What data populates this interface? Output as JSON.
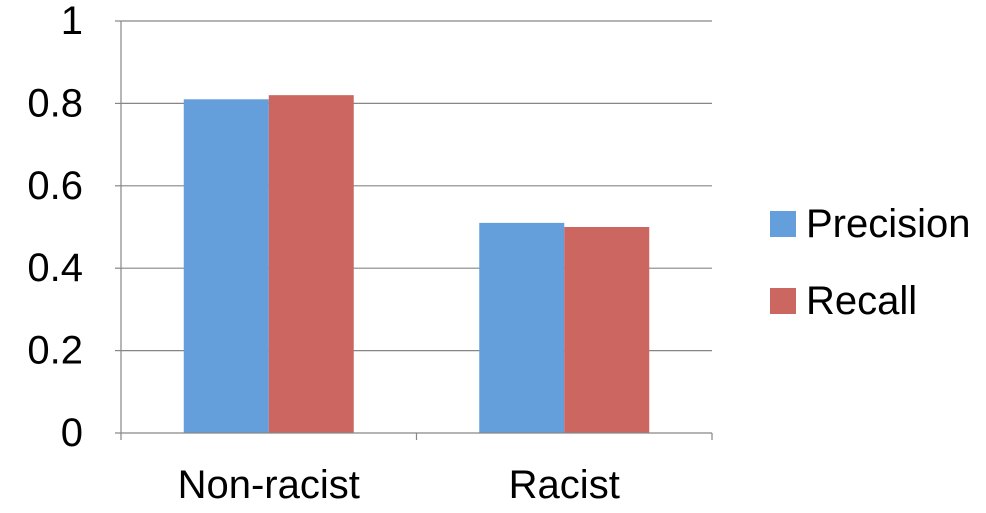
{
  "chart_data": {
    "type": "bar",
    "categories": [
      "Non-racist",
      "Racist"
    ],
    "series": [
      {
        "name": "Precision",
        "values": [
          0.81,
          0.51
        ],
        "color": "#659FDB"
      },
      {
        "name": "Recall",
        "values": [
          0.82,
          0.5
        ],
        "color": "#CC6660"
      }
    ],
    "yticks": [
      "0",
      "0.2",
      "0.4",
      "0.6",
      "0.8",
      "1"
    ],
    "ylim": [
      0,
      1
    ],
    "grid": true,
    "legend_position": "right",
    "gridline_color": "#868686"
  }
}
